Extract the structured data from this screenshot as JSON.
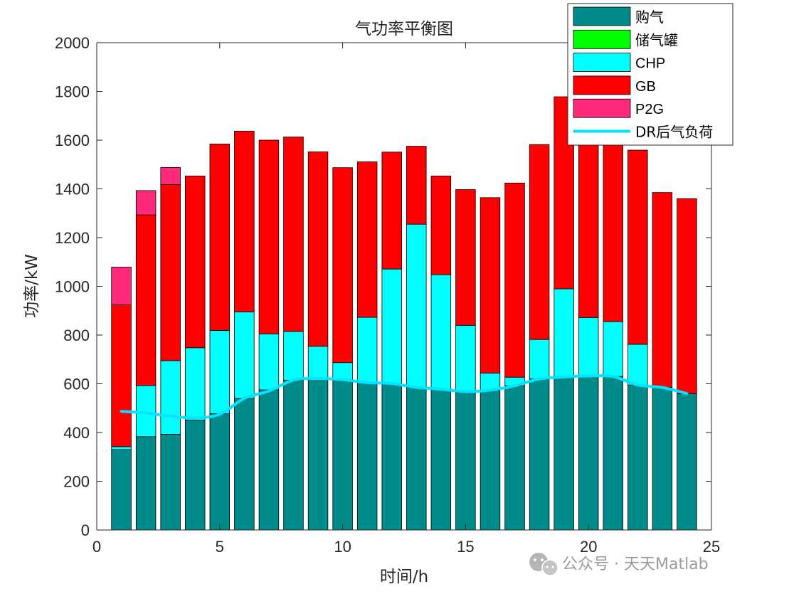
{
  "chart_data": {
    "type": "bar",
    "stacked": true,
    "title": "气功率平衡图",
    "xlabel": "时间/h",
    "ylabel": "功率/kW",
    "xlim": [
      0,
      25
    ],
    "ylim": [
      0,
      2000
    ],
    "xticks": [
      0,
      5,
      10,
      15,
      20,
      25
    ],
    "yticks": [
      0,
      200,
      400,
      600,
      800,
      1000,
      1200,
      1400,
      1600,
      1800,
      2000
    ],
    "categories": [
      1,
      2,
      3,
      4,
      5,
      6,
      7,
      8,
      9,
      10,
      11,
      12,
      13,
      14,
      15,
      16,
      17,
      18,
      19,
      20,
      21,
      22,
      23,
      24
    ],
    "series": [
      {
        "name": "购气",
        "color": "#008b8b",
        "values": [
          330,
          383,
          393,
          450,
          477,
          540,
          575,
          615,
          622,
          617,
          605,
          601,
          585,
          578,
          568,
          574,
          592,
          620,
          628,
          632,
          630,
          595,
          585,
          560
        ]
      },
      {
        "name": "储气罐",
        "color": "#00ff00",
        "values": [
          0,
          0,
          0,
          0,
          0,
          0,
          0,
          0,
          0,
          0,
          0,
          0,
          0,
          0,
          0,
          0,
          0,
          0,
          0,
          0,
          0,
          0,
          0,
          0
        ]
      },
      {
        "name": "CHP",
        "color": "#00ffff",
        "values": [
          12,
          210,
          302,
          298,
          342,
          355,
          230,
          200,
          132,
          70,
          268,
          470,
          670,
          470,
          272,
          70,
          35,
          162,
          362,
          240,
          225,
          167,
          0,
          0
        ]
      },
      {
        "name": "GB",
        "color": "#ff0000",
        "values": [
          582,
          700,
          723,
          705,
          765,
          742,
          795,
          798,
          798,
          800,
          638,
          480,
          320,
          405,
          557,
          720,
          797,
          800,
          788,
          745,
          795,
          797,
          800,
          800
        ]
      },
      {
        "name": "P2G",
        "color": "#ff2a7a",
        "values": [
          155,
          100,
          70,
          0,
          0,
          0,
          0,
          0,
          0,
          0,
          0,
          0,
          0,
          0,
          0,
          0,
          0,
          0,
          0,
          0,
          0,
          0,
          0,
          0
        ]
      }
    ],
    "line": {
      "name": "DR后气负荷",
      "color": "#00e5ff",
      "values": [
        487,
        480,
        467,
        460,
        475,
        540,
        570,
        615,
        622,
        617,
        605,
        601,
        585,
        578,
        568,
        574,
        592,
        620,
        628,
        632,
        630,
        595,
        585,
        560
      ]
    },
    "legend_position": "top-right"
  },
  "watermark": {
    "icon": "wechat-icon",
    "text": "公众号 · 天天Matlab"
  }
}
